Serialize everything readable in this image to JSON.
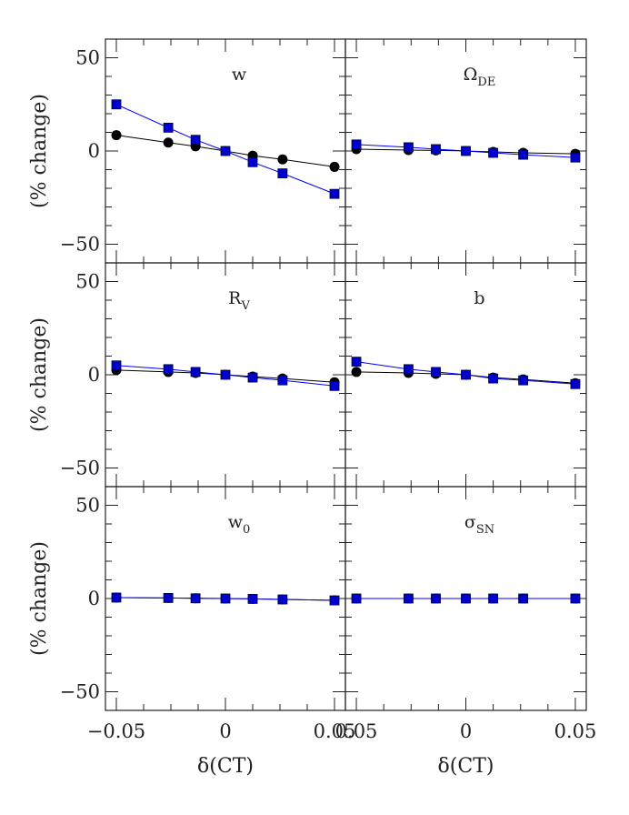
{
  "chart_data": {
    "type": "scatter",
    "layout": "3x2 panel grid, shared axes",
    "xlabel": "δ(CT)",
    "ylabel": "(% change)",
    "xlim": [
      -0.055,
      0.055
    ],
    "ylim": [
      -60,
      60
    ],
    "x_ticks": [
      -0.05,
      0,
      0.05
    ],
    "x_tick_labels_left": [
      "−0.05",
      "0",
      "0.05"
    ],
    "x_tick_labels_right": [
      "0.05",
      "0",
      "0.05"
    ],
    "y_ticks": [
      -50,
      0,
      50
    ],
    "y_tick_labels": [
      "−50",
      "0",
      "50"
    ],
    "x": [
      -0.05,
      -0.0262,
      -0.0137,
      0,
      0.0125,
      0.0262,
      0.05
    ],
    "series_styles": [
      {
        "marker": "circle",
        "color": "#000000",
        "line_color": "#000000"
      },
      {
        "marker": "square",
        "color": "#0000cc",
        "line_color": "#0000ff"
      }
    ],
    "panels": [
      {
        "title": "w",
        "title_sub": "",
        "series": [
          {
            "values": [
              8.5,
              4.5,
              2.5,
              0,
              -2.5,
              -4.5,
              -8.5
            ]
          },
          {
            "values": [
              25,
              12.5,
              6,
              0,
              -6,
              -12,
              -23
            ]
          }
        ]
      },
      {
        "title": "Ω",
        "title_sub": "DE",
        "series": [
          {
            "values": [
              1,
              0.5,
              0.3,
              0,
              -0.5,
              -1,
              -1.5
            ]
          },
          {
            "values": [
              3.5,
              2,
              1,
              0,
              -1,
              -2,
              -3.5
            ]
          }
        ]
      },
      {
        "title": "R",
        "title_sub": "V",
        "series": [
          {
            "values": [
              2.5,
              1.5,
              1,
              0,
              -1,
              -2,
              -4
            ]
          },
          {
            "values": [
              5,
              3,
              1.5,
              0,
              -1.5,
              -3,
              -6
            ]
          }
        ]
      },
      {
        "title": "b",
        "title_sub": "",
        "series": [
          {
            "values": [
              1.5,
              1,
              0.5,
              0,
              -1.5,
              -2.5,
              -4.5
            ]
          },
          {
            "values": [
              7,
              3,
              1.5,
              0,
              -2,
              -3,
              -5
            ]
          }
        ]
      },
      {
        "title": "w",
        "title_sub": "0",
        "series": [
          {
            "values": [
              0.5,
              0.3,
              0.1,
              0,
              -0.2,
              -0.5,
              -1
            ]
          },
          {
            "values": [
              0.5,
              0.3,
              0.1,
              0,
              -0.2,
              -0.5,
              -1
            ]
          }
        ]
      },
      {
        "title": "σ",
        "title_sub": "SN",
        "series": [
          {
            "values": [
              0,
              0,
              0,
              0,
              0,
              0,
              0
            ]
          },
          {
            "values": [
              0,
              0,
              0,
              0,
              0,
              0,
              0
            ]
          }
        ]
      }
    ]
  }
}
